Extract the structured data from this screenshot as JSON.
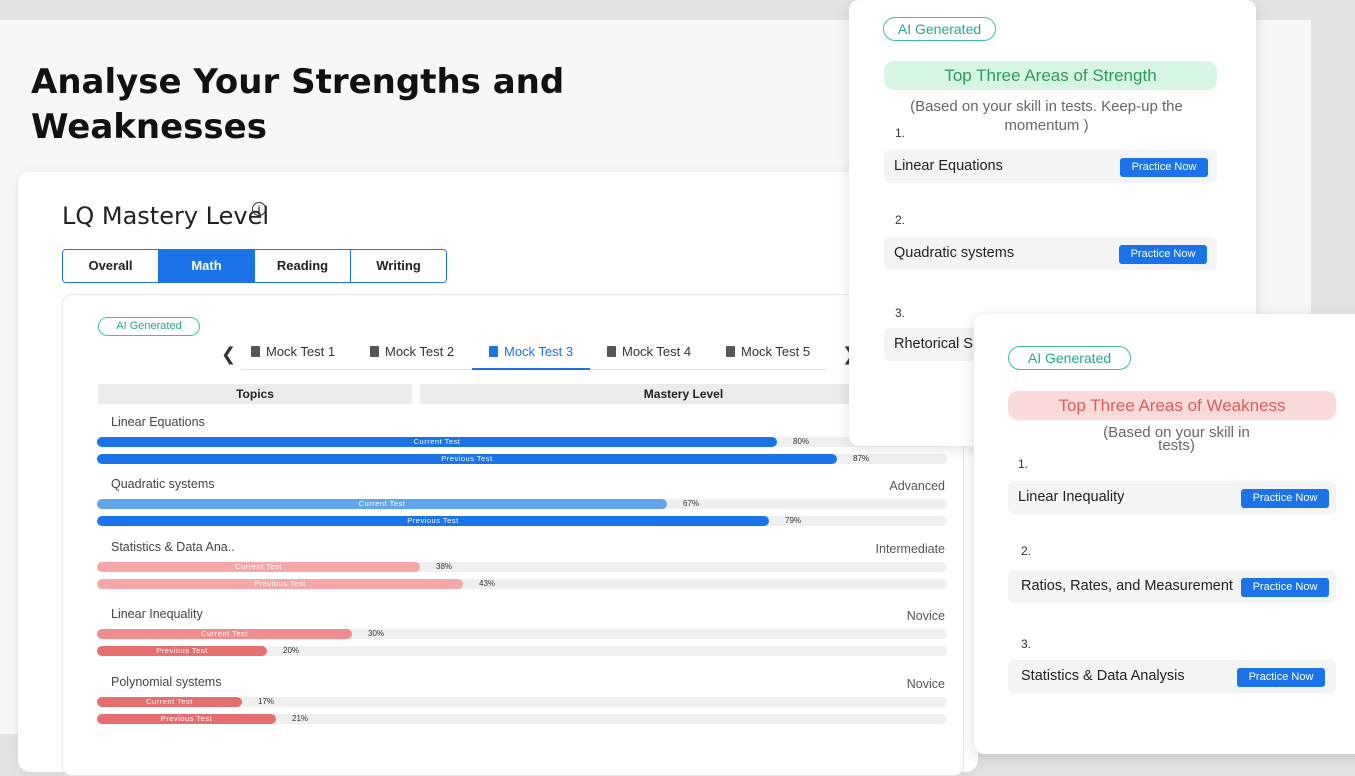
{
  "headline": "Analyse Your Strengths and Weaknesses",
  "mastery": {
    "title": "LQ Mastery Level",
    "info_icon": "info-icon",
    "segments": [
      "Overall",
      "Math",
      "Reading",
      "Writing"
    ],
    "active_segment": "Math",
    "ai_badge": "AI Generated",
    "tabs": [
      "Mock Test 1",
      "Mock Test 2",
      "Mock Test 3",
      "Mock Test 4",
      "Mock Test 5"
    ],
    "active_tab": "Mock Test 3",
    "headers": {
      "topics": "Topics",
      "mastery_level": "Mastery Level"
    },
    "topics": [
      {
        "name": "Linear Equations",
        "level": "",
        "current": 80,
        "previous": 87,
        "current_label": "Current Test",
        "previous_label": "Previous Test",
        "current_pct": "80%",
        "previous_pct": "87%",
        "current_color": "#1a73e8",
        "previous_color": "#1a73e8"
      },
      {
        "name": "Quadratic systems",
        "level": "Advanced",
        "current": 67,
        "previous": 79,
        "current_label": "Current Test",
        "previous_label": "Previous Test",
        "current_pct": "67%",
        "previous_pct": "79%",
        "current_color": "#62a5ef",
        "previous_color": "#1a73e8"
      },
      {
        "name": "Statistics & Data Ana..",
        "level": "Intermediate",
        "current": 38,
        "previous": 43,
        "current_label": "Current Test",
        "previous_label": "Previous Test",
        "current_pct": "38%",
        "previous_pct": "43%",
        "current_color": "#f5a6a6",
        "previous_color": "#f5a6a6"
      },
      {
        "name": "Linear Inequality",
        "level": "Novice",
        "current": 30,
        "previous": 20,
        "current_label": "Current Test",
        "previous_label": "Previous Test",
        "current_pct": "30%",
        "previous_pct": "20%",
        "current_color": "#ef8d8d",
        "previous_color": "#e56f6f"
      },
      {
        "name": "Polynomial systems",
        "level": "Novice",
        "current": 17,
        "previous": 21,
        "current_label": "Current Test",
        "previous_label": "Previous Test",
        "current_pct": "17%",
        "previous_pct": "21%",
        "current_color": "#e56f6f",
        "previous_color": "#e56f6f"
      }
    ]
  },
  "strength": {
    "ai_badge": "AI Generated",
    "title": "Top Three Areas of Strength",
    "note": "(Based on your skill in tests. Keep-up the momentum )",
    "items": [
      {
        "num": "1.",
        "label": "Linear Equations",
        "button": "Practice Now"
      },
      {
        "num": "2.",
        "label": "Quadratic systems",
        "button": "Practice Now"
      },
      {
        "num": "3.",
        "label": "Rhetorical S",
        "button": ""
      }
    ],
    "title_bg": "#d6f5e3",
    "title_color": "#2e9a5e"
  },
  "weakness": {
    "ai_badge": "AI Generated",
    "title": "Top Three Areas of Weakness",
    "note": "(Based on your skill in tests)",
    "items": [
      {
        "num": "1.",
        "label": "Linear Inequality",
        "button": "Practice Now"
      },
      {
        "num": "2.",
        "label": "Ratios, Rates, and Measurement",
        "button": "Practice Now"
      },
      {
        "num": "3.",
        "label": "Statistics & Data Analysis",
        "button": "Practice Now"
      }
    ],
    "title_bg": "#fbdada",
    "title_color": "#e05a5a"
  }
}
